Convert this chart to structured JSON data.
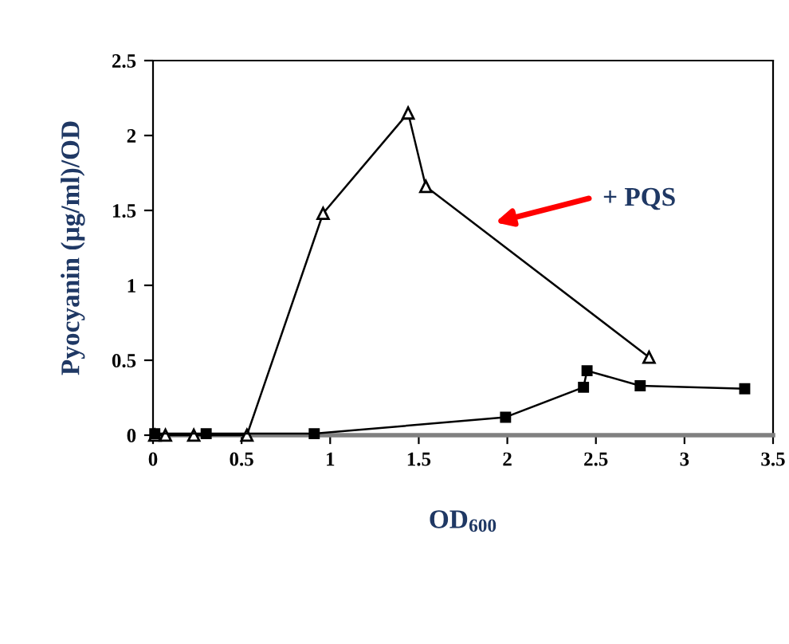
{
  "chart_data": {
    "type": "line",
    "xlabel": "OD$_{600}$",
    "ylabel": "Pyocyanin (µg/ml)/OD",
    "series": [
      {
        "color": "#000000",
        "marker": "triangle",
        "x": [
          0.01,
          0.07,
          0.23,
          0.53,
          0.96,
          1.44,
          1.54,
          2.8
        ],
        "values": [
          0,
          0,
          0,
          0,
          1.48,
          2.15,
          1.66,
          0.52
        ]
      },
      {
        "color": "#000000",
        "marker": "square",
        "x": [
          0.01,
          0.3,
          0.91,
          1.99,
          2.43,
          2.45,
          2.75,
          3.34
        ],
        "values": [
          0.01,
          0.01,
          0.01,
          0.12,
          0.32,
          0.43,
          0.33,
          0.31
        ]
      }
    ],
    "xlim": [
      0,
      3.5
    ],
    "xticks": [
      0,
      0.5,
      1,
      1.5,
      2,
      2.5,
      3,
      3.5
    ],
    "ylim": [
      0,
      2.5
    ],
    "yticks": [
      0,
      0.5,
      1,
      1.5,
      2,
      2.5
    ],
    "grid": false,
    "legend": false,
    "annotations": [
      "+ PQS"
    ]
  }
}
